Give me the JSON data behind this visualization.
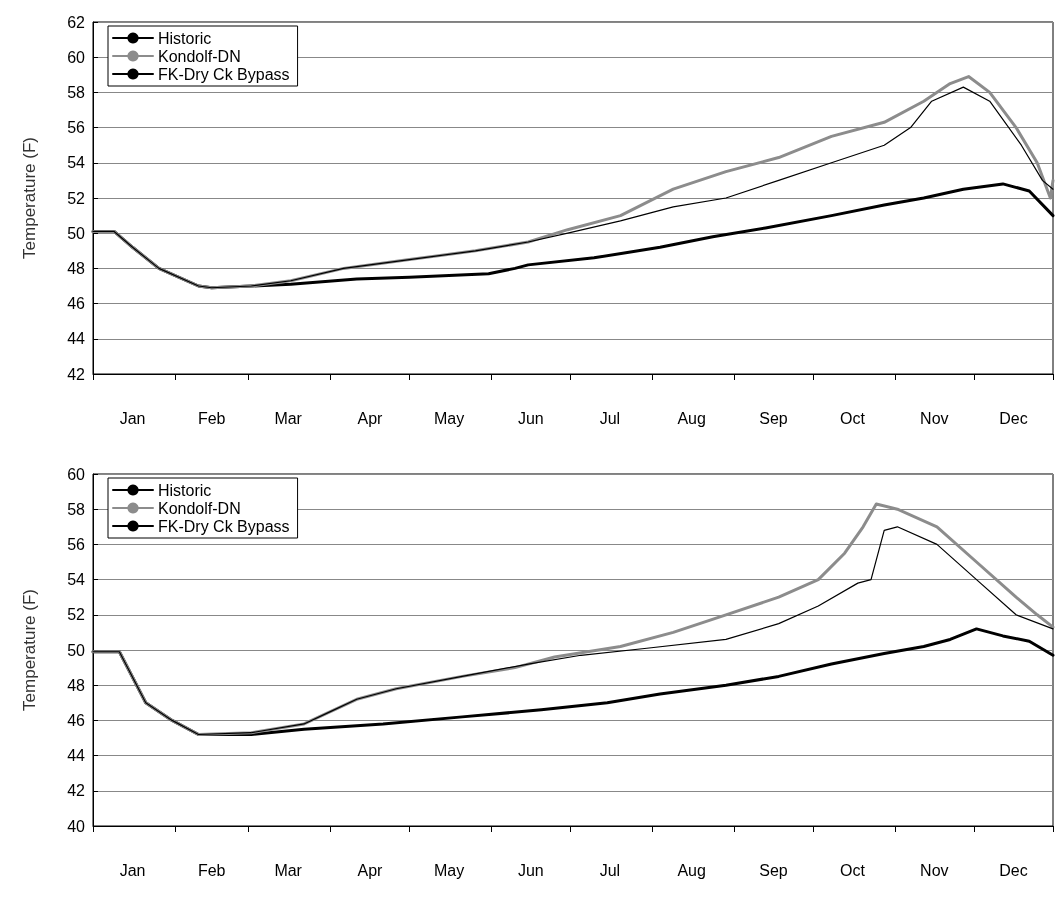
{
  "chart_data": [
    {
      "type": "line",
      "ylabel": "Temperature (F)",
      "xlim": [
        "--01-01",
        "--12-31"
      ],
      "xticks": [
        {
          "value": "--01-01",
          "label": null
        },
        {
          "value": "--02-01",
          "label": null
        },
        {
          "value": "--03-01",
          "label": null
        },
        {
          "value": "--04-01",
          "label": null
        },
        {
          "value": "--05-01",
          "label": null
        },
        {
          "value": "--06-01",
          "label": null
        },
        {
          "value": "--07-01",
          "label": null
        },
        {
          "value": "--08-01",
          "label": null
        },
        {
          "value": "--09-01",
          "label": null
        },
        {
          "value": "--10-01",
          "label": null
        },
        {
          "value": "--11-01",
          "label": null
        },
        {
          "value": "--12-01",
          "label": null
        },
        {
          "value": "--12-31",
          "label": null
        },
        {
          "value": "--01-16",
          "label": "Jan"
        },
        {
          "value": "--02-15",
          "label": "Feb"
        },
        {
          "value": "--03-16",
          "label": "Mar"
        },
        {
          "value": "--04-16",
          "label": "Apr"
        },
        {
          "value": "--05-16",
          "label": "May"
        },
        {
          "value": "--06-16",
          "label": "Jun"
        },
        {
          "value": "--07-16",
          "label": "Jul"
        },
        {
          "value": "--08-16",
          "label": "Aug"
        },
        {
          "value": "--09-16",
          "label": "Sep"
        },
        {
          "value": "--10-16",
          "label": "Oct"
        },
        {
          "value": "--11-16",
          "label": "Nov"
        },
        {
          "value": "--12-16",
          "label": "Dec"
        }
      ],
      "ylim": [
        42,
        62
      ],
      "yticks": [
        42,
        44,
        46,
        48,
        50,
        52,
        54,
        56,
        58,
        60,
        62
      ],
      "grid": "y",
      "legend": "top left",
      "marker": "none",
      "line_style": "solid",
      "series": [
        {
          "name": "Historic",
          "color": "#000000",
          "x": [
            "--01-01",
            "--01-09",
            "--01-16",
            "--01-26",
            "--02-10",
            "--02-15",
            "--03-02",
            "--03-17",
            "--04-11",
            "--05-01",
            "--05-31",
            "--06-10",
            "--06-15",
            "--07-10",
            "--08-04",
            "--08-24",
            "--09-13",
            "--10-08",
            "--10-28",
            "--11-12",
            "--11-27",
            "--12-12",
            "--12-22",
            "--12-31"
          ],
          "values": [
            50.1,
            50.1,
            49.2,
            48.0,
            47.0,
            46.9,
            47.0,
            47.1,
            47.4,
            47.5,
            47.7,
            48.0,
            48.2,
            48.6,
            49.2,
            49.8,
            50.3,
            51.0,
            51.6,
            52.0,
            52.5,
            52.8,
            52.4,
            51.0
          ]
        },
        {
          "name": "Kondolf-DN",
          "color": "#8c8c8c",
          "x": [
            "--01-01",
            "--01-09",
            "--01-16",
            "--01-26",
            "--02-10",
            "--02-15",
            "--03-02",
            "--03-17",
            "--04-06",
            "--05-01",
            "--05-26",
            "--06-15",
            "--06-30",
            "--07-20",
            "--08-09",
            "--08-29",
            "--09-18",
            "--10-08",
            "--10-28",
            "--11-12",
            "--11-22",
            "--11-29",
            "--12-07",
            "--12-17",
            "--12-25",
            "--12-30",
            "--12-31"
          ],
          "values": [
            50.1,
            50.1,
            49.2,
            48.0,
            47.0,
            46.9,
            47.0,
            47.3,
            48.0,
            48.5,
            49.0,
            49.5,
            50.2,
            51.0,
            52.5,
            53.5,
            54.3,
            55.5,
            56.3,
            57.5,
            58.5,
            58.9,
            58.0,
            56.0,
            54.0,
            52.0,
            53.0
          ]
        },
        {
          "name": "FK-Dry Ck Bypass",
          "color": "#000000",
          "x": [
            "--01-01",
            "--01-09",
            "--01-16",
            "--01-26",
            "--02-10",
            "--02-15",
            "--03-02",
            "--03-17",
            "--04-06",
            "--05-01",
            "--05-26",
            "--06-15",
            "--06-30",
            "--07-20",
            "--08-09",
            "--08-29",
            "--09-18",
            "--10-08",
            "--10-28",
            "--11-07",
            "--11-15",
            "--11-27",
            "--12-07",
            "--12-19",
            "--12-27",
            "--12-31"
          ],
          "values": [
            50.1,
            50.1,
            49.2,
            48.0,
            47.0,
            46.9,
            47.0,
            47.3,
            48.0,
            48.5,
            49.0,
            49.5,
            50.0,
            50.7,
            51.5,
            52.0,
            53.0,
            54.0,
            55.0,
            56.0,
            57.5,
            58.3,
            57.5,
            55.0,
            53.0,
            52.5
          ]
        }
      ]
    },
    {
      "type": "line",
      "ylabel": "Temperature (F)",
      "xlim": [
        "--01-01",
        "--12-31"
      ],
      "xticks": [
        {
          "value": "--01-01",
          "label": null
        },
        {
          "value": "--02-01",
          "label": null
        },
        {
          "value": "--03-01",
          "label": null
        },
        {
          "value": "--04-01",
          "label": null
        },
        {
          "value": "--05-01",
          "label": null
        },
        {
          "value": "--06-01",
          "label": null
        },
        {
          "value": "--07-01",
          "label": null
        },
        {
          "value": "--08-01",
          "label": null
        },
        {
          "value": "--09-01",
          "label": null
        },
        {
          "value": "--10-01",
          "label": null
        },
        {
          "value": "--11-01",
          "label": null
        },
        {
          "value": "--12-01",
          "label": null
        },
        {
          "value": "--12-31",
          "label": null
        },
        {
          "value": "--01-16",
          "label": "Jan"
        },
        {
          "value": "--02-15",
          "label": "Feb"
        },
        {
          "value": "--03-16",
          "label": "Mar"
        },
        {
          "value": "--04-16",
          "label": "Apr"
        },
        {
          "value": "--05-16",
          "label": "May"
        },
        {
          "value": "--06-16",
          "label": "Jun"
        },
        {
          "value": "--07-16",
          "label": "Jul"
        },
        {
          "value": "--08-16",
          "label": "Aug"
        },
        {
          "value": "--09-16",
          "label": "Sep"
        },
        {
          "value": "--10-16",
          "label": "Oct"
        },
        {
          "value": "--11-16",
          "label": "Nov"
        },
        {
          "value": "--12-16",
          "label": "Dec"
        }
      ],
      "ylim": [
        40,
        60
      ],
      "yticks": [
        40,
        42,
        44,
        46,
        48,
        50,
        52,
        54,
        56,
        58,
        60
      ],
      "grid": "y",
      "legend": "top left",
      "marker": "none",
      "line_style": "solid",
      "series": [
        {
          "name": "Historic",
          "color": "#000000",
          "x": [
            "--01-01",
            "--01-11",
            "--01-21",
            "--01-31",
            "--02-10",
            "--03-02",
            "--03-22",
            "--04-21",
            "--05-21",
            "--06-20",
            "--07-15",
            "--08-04",
            "--08-29",
            "--09-18",
            "--10-08",
            "--10-28",
            "--11-12",
            "--11-22",
            "--12-02",
            "--12-12",
            "--12-22",
            "--12-31"
          ],
          "values": [
            49.9,
            49.9,
            47.0,
            46.0,
            45.2,
            45.2,
            45.5,
            45.8,
            46.2,
            46.6,
            47.0,
            47.5,
            48.0,
            48.5,
            49.2,
            49.8,
            50.2,
            50.6,
            51.2,
            50.8,
            50.5,
            49.7
          ]
        },
        {
          "name": "Kondolf-DN",
          "color": "#8c8c8c",
          "x": [
            "--01-01",
            "--01-11",
            "--01-21",
            "--01-31",
            "--02-10",
            "--03-02",
            "--03-22",
            "--04-01",
            "--04-11",
            "--04-26",
            "--05-21",
            "--06-10",
            "--06-25",
            "--07-20",
            "--08-09",
            "--08-29",
            "--09-18",
            "--10-03",
            "--10-13",
            "--10-20",
            "--10-25",
            "--11-02",
            "--11-17",
            "--12-02",
            "--12-17",
            "--12-25",
            "--12-31"
          ],
          "values": [
            49.9,
            49.9,
            47.0,
            46.0,
            45.2,
            45.3,
            45.8,
            46.5,
            47.2,
            47.8,
            48.5,
            49.0,
            49.6,
            50.2,
            51.0,
            52.0,
            53.0,
            54.0,
            55.5,
            57.0,
            58.3,
            58.0,
            57.0,
            55.0,
            53.0,
            52.0,
            51.3
          ]
        },
        {
          "name": "FK-Dry Ck Bypass",
          "color": "#000000",
          "x": [
            "--01-01",
            "--01-11",
            "--01-21",
            "--01-31",
            "--02-10",
            "--03-02",
            "--03-22",
            "--04-01",
            "--04-11",
            "--04-26",
            "--05-21",
            "--06-15",
            "--07-05",
            "--07-30",
            "--08-29",
            "--09-18",
            "--10-03",
            "--10-18",
            "--10-23",
            "--10-28",
            "--11-02",
            "--11-17",
            "--12-02",
            "--12-17",
            "--12-31"
          ],
          "values": [
            49.9,
            49.9,
            47.0,
            46.0,
            45.2,
            45.3,
            45.8,
            46.5,
            47.2,
            47.8,
            48.5,
            49.2,
            49.7,
            50.1,
            50.6,
            51.5,
            52.5,
            53.8,
            54.0,
            56.8,
            57.0,
            56.0,
            54.0,
            52.0,
            51.2
          ]
        }
      ]
    }
  ]
}
